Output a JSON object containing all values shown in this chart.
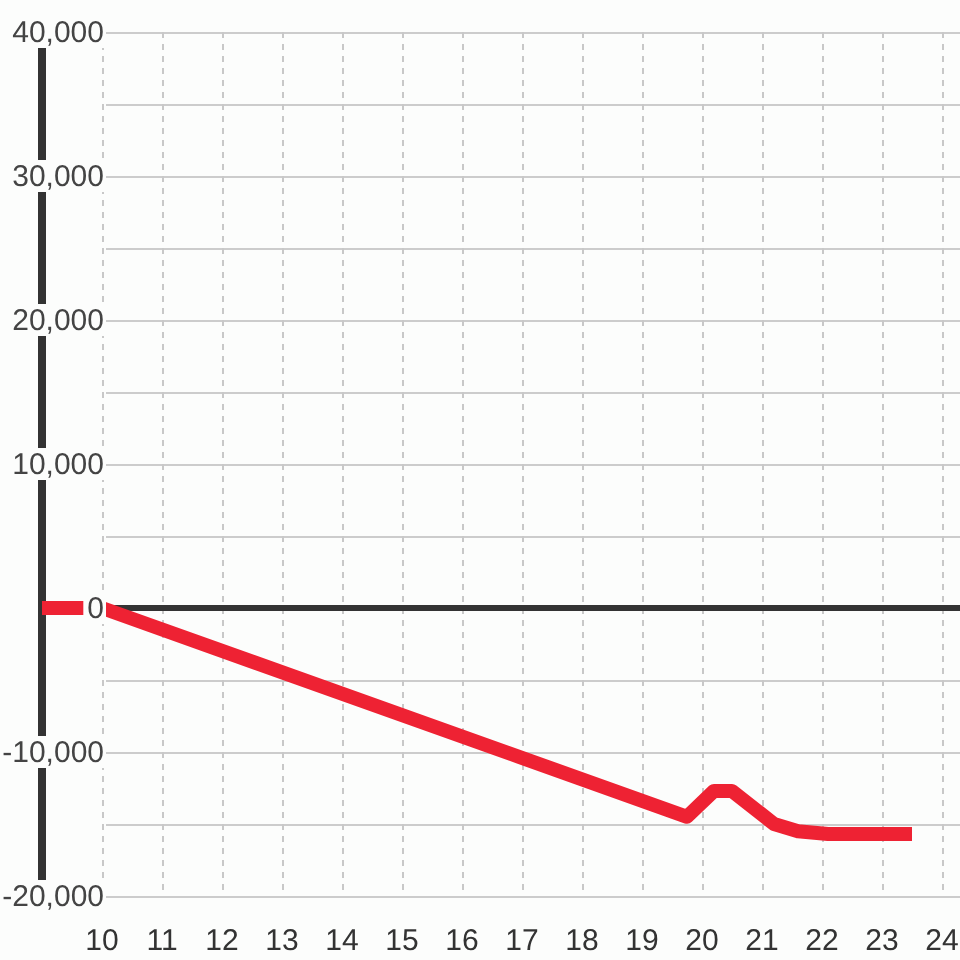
{
  "chart_data": {
    "type": "line",
    "x": [
      9,
      10,
      19.75,
      20.2,
      20.5,
      21.2,
      21.6,
      22.1,
      23.5
    ],
    "series": [
      {
        "color": "#ee2233",
        "values": [
          0,
          0,
          -14500,
          -12700,
          -12700,
          -15000,
          -15500,
          -15700,
          -15700
        ]
      }
    ],
    "xlim": [
      9,
      24.3
    ],
    "xticks": [
      10,
      11,
      12,
      13,
      14,
      15,
      16,
      17,
      18,
      19,
      20,
      21,
      22,
      23,
      24
    ],
    "ylim": [
      -20000,
      40000
    ],
    "yticks": [
      {
        "value": -20000,
        "label": "-20,000"
      },
      {
        "value": -15000,
        "label": null
      },
      {
        "value": -10000,
        "label": "-10,000"
      },
      {
        "value": -5000,
        "label": null
      },
      0,
      {
        "value": 5000,
        "label": null
      },
      {
        "value": 10000,
        "label": "10,000"
      },
      {
        "value": 15000,
        "label": null
      },
      {
        "value": 20000,
        "label": "20,000"
      },
      {
        "value": 25000,
        "label": null
      },
      {
        "value": 30000,
        "label": "30,000"
      },
      {
        "value": 35000,
        "label": null
      },
      {
        "value": 40000,
        "label": "40,000"
      }
    ],
    "grid": true,
    "legend": false,
    "ref_lines": [
      {
        "axis": "y",
        "value": 0,
        "color": "#333333"
      }
    ]
  }
}
